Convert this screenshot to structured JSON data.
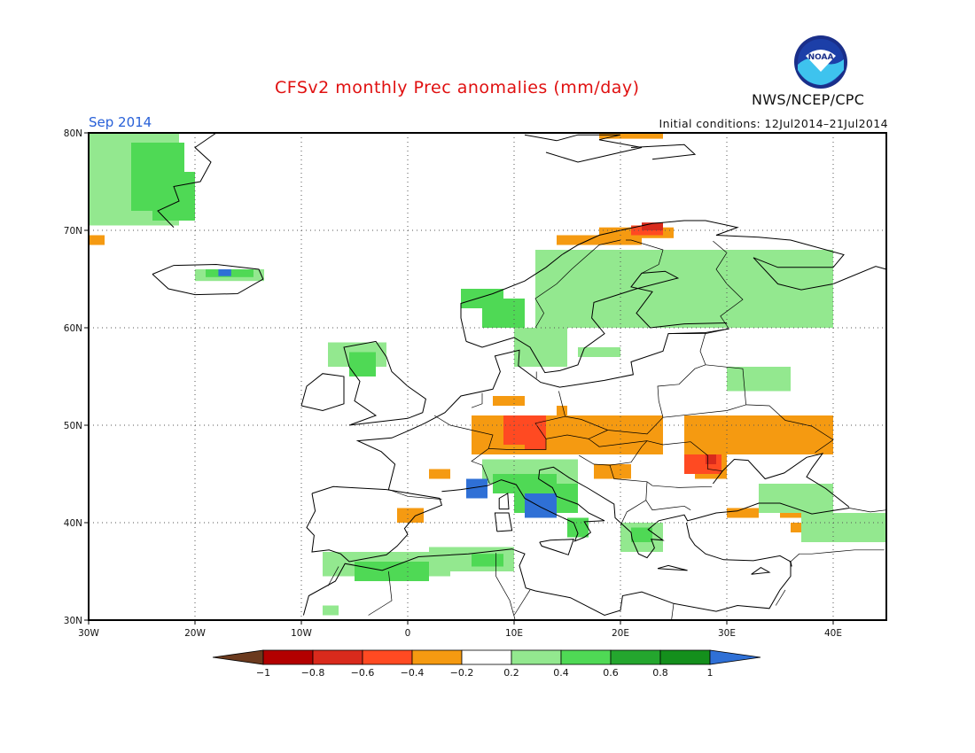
{
  "title": "CFSv2 monthly Prec anomalies (mm/day)",
  "period": "Sep 2014",
  "initial_conditions": "Initial conditions: 12Jul2014–21Jul2014",
  "agency": "NWS/NCEP/CPC",
  "logo_text": "NOAA",
  "map": {
    "lon_range": [
      -30,
      45
    ],
    "lat_range": [
      30,
      80
    ],
    "lat_labels": [
      "30N",
      "40N",
      "50N",
      "60N",
      "70N",
      "80N"
    ],
    "lon_labels": [
      "30W",
      "20W",
      "10W",
      "0",
      "10E",
      "20E",
      "30E",
      "40E"
    ],
    "grid": "dotted every 10 degrees"
  },
  "colorbar": {
    "tick_labels": [
      "−1",
      "−0.8",
      "−0.6",
      "−0.4",
      "−0.2",
      "0.2",
      "0.4",
      "0.6",
      "0.8",
      "1"
    ],
    "colors": [
      "#6b3a1e",
      "#b30000",
      "#d92a1c",
      "#ff4a22",
      "#f59a11",
      "#ffffff",
      "#93e88f",
      "#4fd955",
      "#24a62e",
      "#148f1c",
      "#2f70d6"
    ]
  }
}
